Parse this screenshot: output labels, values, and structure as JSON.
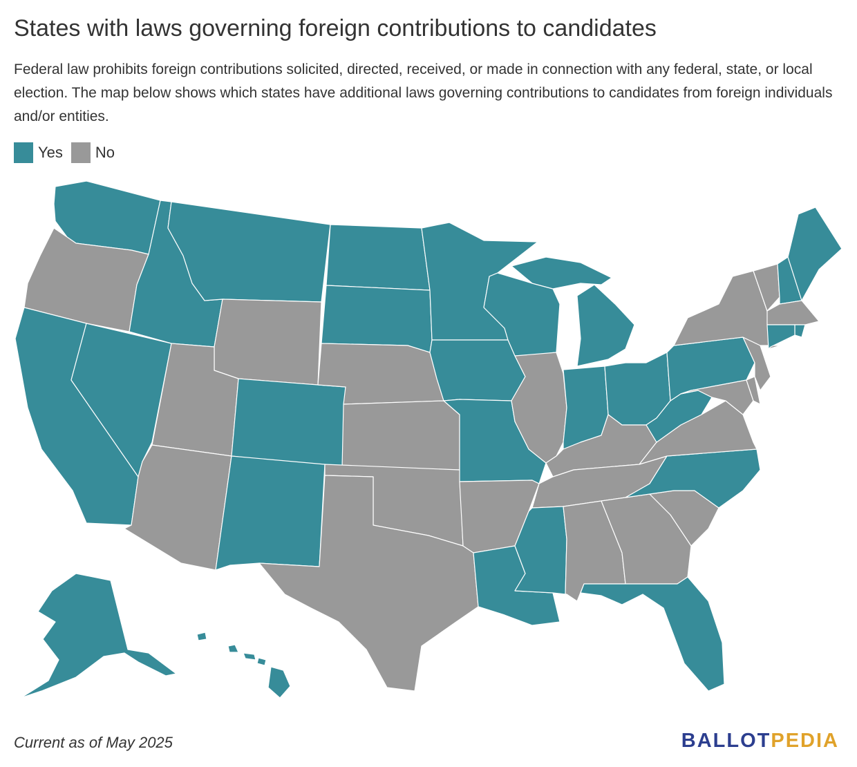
{
  "title": "States with laws governing foreign contributions to candidates",
  "subtitle": "Federal law prohibits foreign contributions solicited, directed, received, or made in connection with any federal, state, or local election. The map below shows which states have additional laws governing contributions to candidates from foreign individuals and/or entities.",
  "legend": [
    {
      "label": "Yes",
      "color": "#378c99"
    },
    {
      "label": "No",
      "color": "#999999"
    }
  ],
  "colors": {
    "yes": "#378c99",
    "no": "#999999",
    "border": "#ffffff",
    "logo_dark": "#2c3e8f",
    "logo_accent": "#e0a22a"
  },
  "states": {
    "WA": "Yes",
    "OR": "No",
    "CA": "Yes",
    "NV": "Yes",
    "ID": "Yes",
    "MT": "Yes",
    "WY": "No",
    "UT": "No",
    "AZ": "No",
    "CO": "Yes",
    "NM": "Yes",
    "ND": "Yes",
    "SD": "Yes",
    "NE": "No",
    "KS": "No",
    "OK": "No",
    "TX": "No",
    "MN": "Yes",
    "IA": "Yes",
    "MO": "Yes",
    "AR": "No",
    "LA": "Yes",
    "WI": "Yes",
    "IL": "No",
    "MI": "Yes",
    "IN": "Yes",
    "OH": "Yes",
    "KY": "No",
    "TN": "No",
    "MS": "Yes",
    "AL": "No",
    "GA": "No",
    "FL": "Yes",
    "SC": "No",
    "NC": "Yes",
    "VA": "No",
    "WV": "Yes",
    "PA": "Yes",
    "NY": "No",
    "VT": "No",
    "NH": "Yes",
    "ME": "Yes",
    "MA": "No",
    "RI": "Yes",
    "CT": "Yes",
    "NJ": "No",
    "DE": "No",
    "MD": "No",
    "AK": "Yes",
    "HI": "Yes"
  },
  "footnote": "Current as of May 2025",
  "logo": {
    "part1": "BALLOT",
    "part2": "PEDIA"
  }
}
